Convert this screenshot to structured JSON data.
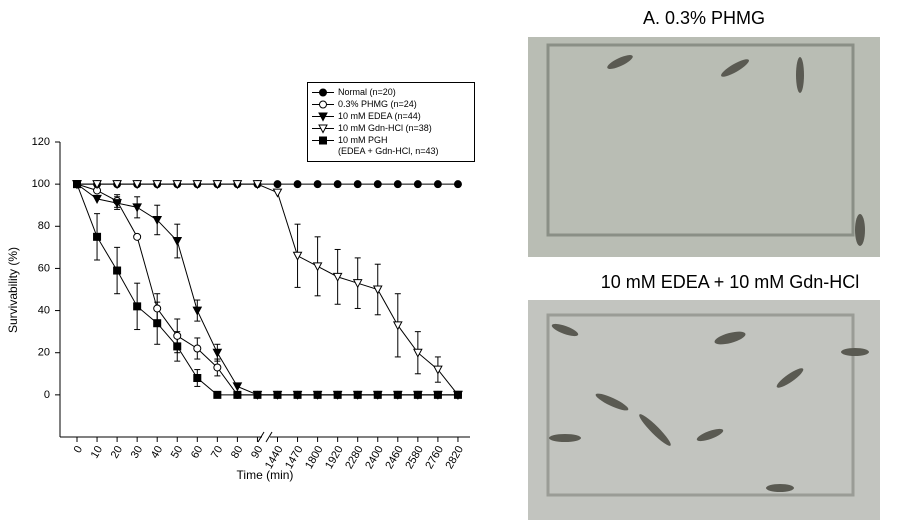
{
  "chart_data": {
    "type": "line",
    "ylabel": "Survivability (%)",
    "xlabel": "Time (min)",
    "categories": [
      "0",
      "10",
      "20",
      "30",
      "40",
      "50",
      "60",
      "70",
      "80",
      "90",
      "1440",
      "1470",
      "1800",
      "1920",
      "2280",
      "2400",
      "2460",
      "2580",
      "2760",
      "2820"
    ],
    "ylim": [
      -20,
      120
    ],
    "yticks": [
      0,
      20,
      40,
      60,
      80,
      100,
      120
    ],
    "series": [
      {
        "name": "Normal (n=20)",
        "color": "#000000",
        "marker": "circle-filled",
        "values": [
          100,
          100,
          100,
          100,
          100,
          100,
          100,
          100,
          100,
          100,
          100,
          100,
          100,
          100,
          100,
          100,
          100,
          100,
          100,
          100
        ]
      },
      {
        "name": "0.3% PHMG (n=24)",
        "color": "#000000",
        "marker": "circle-open",
        "values": [
          100,
          97,
          92,
          75,
          41,
          28,
          22,
          13,
          0,
          0,
          0,
          0,
          0,
          0,
          0,
          0,
          0,
          0,
          0,
          0
        ],
        "errors": [
          null,
          null,
          3,
          null,
          7,
          8,
          5,
          4,
          null,
          null,
          null,
          null,
          null,
          null,
          null,
          null,
          null,
          null,
          null,
          null
        ]
      },
      {
        "name": "10 mM EDEA (n=44)",
        "color": "#000000",
        "marker": "triangle-filled",
        "values": [
          100,
          93,
          91,
          89,
          83,
          73,
          40,
          20,
          4,
          0,
          0,
          0,
          0,
          0,
          0,
          0,
          0,
          0,
          0,
          0
        ],
        "errors": [
          null,
          null,
          3,
          5,
          7,
          8,
          5,
          4,
          null,
          null,
          null,
          null,
          null,
          null,
          null,
          null,
          null,
          null,
          null,
          null
        ]
      },
      {
        "name": "10 mM Gdn-HCl (n=38)",
        "color": "#000000",
        "marker": "triangle-open",
        "values": [
          100,
          100,
          100,
          100,
          100,
          100,
          100,
          100,
          100,
          100,
          96,
          66,
          61,
          56,
          53,
          50,
          33,
          20,
          12,
          0
        ],
        "errors": [
          null,
          null,
          null,
          null,
          null,
          null,
          null,
          null,
          null,
          null,
          null,
          15,
          14,
          13,
          12,
          12,
          15,
          10,
          6,
          null
        ]
      },
      {
        "name": "10 mM PGH\n(EDEA + Gdn-HCl, n=43)",
        "color": "#000000",
        "marker": "square-filled",
        "values": [
          100,
          75,
          59,
          42,
          34,
          23,
          8,
          0,
          0,
          0,
          0,
          0,
          0,
          0,
          0,
          0,
          0,
          0,
          0,
          0
        ],
        "errors": [
          null,
          11,
          11,
          11,
          10,
          7,
          4,
          null,
          null,
          null,
          null,
          null,
          null,
          null,
          null,
          null,
          null,
          null,
          null,
          null
        ]
      }
    ]
  },
  "panels": [
    {
      "title": "A. 0.3% PHMG"
    },
    {
      "title": "10 mM EDEA + 10 mM Gdn-HCl"
    }
  ]
}
